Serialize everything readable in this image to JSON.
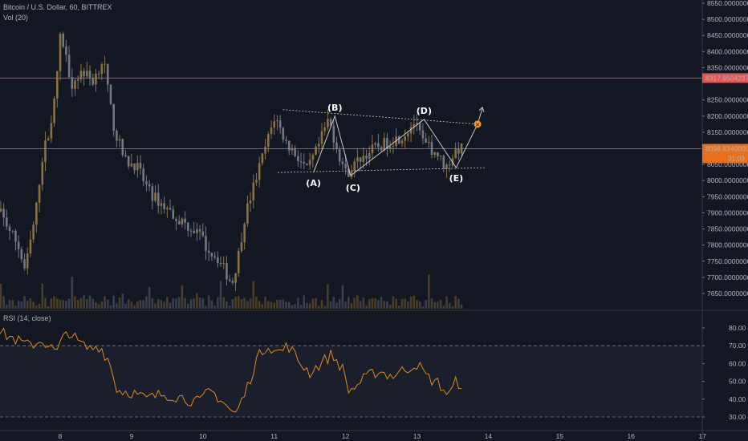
{
  "header": {
    "symbol_line": "Bitcoin / U.S. Dollar, 60, BITTREX",
    "volume_label": "Vol (20)",
    "rsi_label": "RSI (14, close)"
  },
  "colors": {
    "background": "#131722",
    "up_candle": "#7e6a3c",
    "down_candle": "#6e7380",
    "rsi_line": "#e08a1a",
    "resistance_line": "#e05656",
    "current_price_line": "#e8701a",
    "annotation": "#c8c8c8",
    "target_marker": "#f0961e"
  },
  "price_axis": {
    "ticks": [
      "8550.00000000",
      "8500.00000000",
      "8450.00000000",
      "8400.00000000",
      "8350.00000000",
      "8250.00000000",
      "8200.00000000",
      "8150.00000000",
      "8050.00000000",
      "8000.00000000",
      "7950.00000000",
      "7900.00000000",
      "7850.00000000",
      "7800.00000000",
      "7750.00000000",
      "7700.00000000",
      "7650.00000000"
    ],
    "resistance_value": "8317.95042372",
    "current_value": "8098.83400000",
    "countdown": "31:09"
  },
  "rsi_axis": {
    "ticks": [
      "80.00",
      "70.00",
      "60.00",
      "50.00",
      "40.00",
      "30.00"
    ]
  },
  "time_axis": {
    "ticks": [
      "8",
      "9",
      "10",
      "11",
      "12",
      "13",
      "14",
      "15",
      "16",
      "17"
    ]
  },
  "annotations": {
    "wave_labels": [
      "(A)",
      "(B)",
      "(C)",
      "(D)",
      "(E)"
    ],
    "target_glyph": "✕"
  },
  "chart_data": {
    "type": "candlestick",
    "symbol": "BTC/USD",
    "interval": "60",
    "exchange": "BITTREX",
    "ylim": [
      7620,
      8560
    ],
    "rsi_ylim": [
      27,
      85
    ],
    "rsi_levels": [
      70,
      30
    ],
    "price_path": [
      {
        "day": 7.0,
        "price": 7880
      },
      {
        "day": 7.2,
        "price": 7900
      },
      {
        "day": 7.45,
        "price": 7800
      },
      {
        "day": 7.55,
        "price": 7720
      },
      {
        "day": 7.7,
        "price": 7900
      },
      {
        "day": 7.78,
        "price": 8060
      },
      {
        "day": 7.95,
        "price": 8220
      },
      {
        "day": 8.05,
        "price": 8460
      },
      {
        "day": 8.2,
        "price": 8300
      },
      {
        "day": 8.35,
        "price": 8340
      },
      {
        "day": 8.5,
        "price": 8310
      },
      {
        "day": 8.65,
        "price": 8380
      },
      {
        "day": 8.72,
        "price": 8260
      },
      {
        "day": 8.8,
        "price": 8160
      },
      {
        "day": 8.95,
        "price": 8060
      },
      {
        "day": 9.1,
        "price": 8050
      },
      {
        "day": 9.3,
        "price": 7960
      },
      {
        "day": 9.5,
        "price": 7920
      },
      {
        "day": 9.7,
        "price": 7880
      },
      {
        "day": 9.9,
        "price": 7850
      },
      {
        "day": 10.0,
        "price": 7830
      },
      {
        "day": 10.1,
        "price": 7790
      },
      {
        "day": 10.25,
        "price": 7760
      },
      {
        "day": 10.45,
        "price": 7680
      },
      {
        "day": 10.55,
        "price": 7780
      },
      {
        "day": 10.62,
        "price": 7880
      },
      {
        "day": 10.75,
        "price": 7980
      },
      {
        "day": 10.9,
        "price": 8090
      },
      {
        "day": 11.05,
        "price": 8200
      },
      {
        "day": 11.2,
        "price": 8120
      },
      {
        "day": 11.35,
        "price": 8080
      },
      {
        "day": 11.5,
        "price": 8030
      },
      {
        "day": 11.65,
        "price": 8100
      },
      {
        "day": 11.8,
        "price": 8190
      },
      {
        "day": 11.95,
        "price": 8080
      },
      {
        "day": 12.05,
        "price": 8020
      },
      {
        "day": 12.25,
        "price": 8070
      },
      {
        "day": 12.45,
        "price": 8100
      },
      {
        "day": 12.65,
        "price": 8120
      },
      {
        "day": 12.85,
        "price": 8140
      },
      {
        "day": 13.0,
        "price": 8180
      },
      {
        "day": 13.15,
        "price": 8110
      },
      {
        "day": 13.3,
        "price": 8090
      },
      {
        "day": 13.45,
        "price": 8040
      },
      {
        "day": 13.6,
        "price": 8100
      },
      {
        "day": 13.65,
        "price": 8098
      }
    ],
    "rsi": [
      {
        "day": 7.0,
        "value": 80
      },
      {
        "day": 7.3,
        "value": 75
      },
      {
        "day": 7.55,
        "value": 70
      },
      {
        "day": 7.75,
        "value": 73
      },
      {
        "day": 7.95,
        "value": 66
      },
      {
        "day": 8.1,
        "value": 79
      },
      {
        "day": 8.25,
        "value": 72
      },
      {
        "day": 8.4,
        "value": 68
      },
      {
        "day": 8.55,
        "value": 70
      },
      {
        "day": 8.68,
        "value": 62
      },
      {
        "day": 8.8,
        "value": 45
      },
      {
        "day": 9.0,
        "value": 44
      },
      {
        "day": 9.2,
        "value": 40
      },
      {
        "day": 9.45,
        "value": 43
      },
      {
        "day": 9.7,
        "value": 41
      },
      {
        "day": 9.95,
        "value": 38
      },
      {
        "day": 10.1,
        "value": 45
      },
      {
        "day": 10.25,
        "value": 40
      },
      {
        "day": 10.45,
        "value": 31
      },
      {
        "day": 10.6,
        "value": 44
      },
      {
        "day": 10.75,
        "value": 62
      },
      {
        "day": 10.9,
        "value": 71
      },
      {
        "day": 11.05,
        "value": 66
      },
      {
        "day": 11.2,
        "value": 70
      },
      {
        "day": 11.35,
        "value": 61
      },
      {
        "day": 11.5,
        "value": 55
      },
      {
        "day": 11.65,
        "value": 60
      },
      {
        "day": 11.8,
        "value": 65
      },
      {
        "day": 11.95,
        "value": 58
      },
      {
        "day": 12.05,
        "value": 44
      },
      {
        "day": 12.25,
        "value": 51
      },
      {
        "day": 12.45,
        "value": 56
      },
      {
        "day": 12.65,
        "value": 53
      },
      {
        "day": 12.85,
        "value": 57
      },
      {
        "day": 13.0,
        "value": 60
      },
      {
        "day": 13.15,
        "value": 52
      },
      {
        "day": 13.3,
        "value": 49
      },
      {
        "day": 13.45,
        "value": 42
      },
      {
        "day": 13.55,
        "value": 50
      },
      {
        "day": 13.65,
        "value": 48
      }
    ],
    "waves": [
      {
        "label": "(A)",
        "day": 11.55,
        "price": 8025
      },
      {
        "label": "(B)",
        "day": 11.85,
        "price": 8200
      },
      {
        "label": "(C)",
        "day": 12.07,
        "price": 8015
      },
      {
        "label": "(D)",
        "day": 13.1,
        "price": 8190
      },
      {
        "label": "(E)",
        "day": 13.55,
        "price": 8040
      },
      {
        "label": "target",
        "day": 13.85,
        "price": 8175
      }
    ],
    "triangle_upper": [
      {
        "day": 11.12,
        "price": 8220
      },
      {
        "day": 13.85,
        "price": 8175
      }
    ],
    "triangle_lower": [
      {
        "day": 11.05,
        "price": 8025
      },
      {
        "day": 13.95,
        "price": 8040
      }
    ],
    "resistance_level": 8317.95042372,
    "current_price": 8098.834
  }
}
